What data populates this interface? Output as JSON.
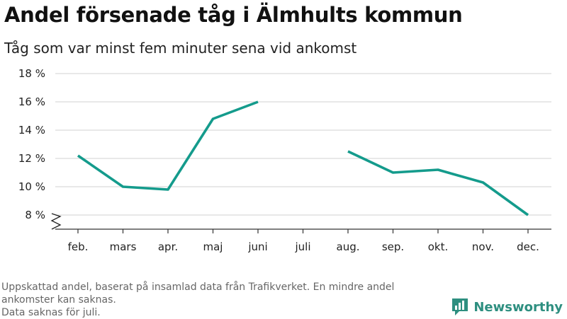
{
  "title": "Andel försenade tåg i Älmhults kommun",
  "subtitle": "Tåg som var minst fem minuter sena vid ankomst",
  "footer": {
    "line1": "Uppskattad andel, baserat på insamlad data från Trafikverket. En mindre andel ankomster kan saknas.",
    "line2": "Data saknas för juli."
  },
  "logo": {
    "text": "Newsworthy",
    "icon": "bar-chart-speech-bubble-icon"
  },
  "colors": {
    "line": "#149b8c",
    "grid": "#d9d9d9",
    "axis": "#333333",
    "logo": "#2e8f80"
  },
  "chart_data": {
    "type": "line",
    "title": "Andel försenade tåg i Älmhults kommun",
    "subtitle": "Tåg som var minst fem minuter sena vid ankomst",
    "categories": [
      "feb.",
      "mars",
      "apr.",
      "maj",
      "juni",
      "juli",
      "aug.",
      "sep.",
      "okt.",
      "nov.",
      "dec."
    ],
    "series": [
      {
        "values": [
          12.2,
          10.0,
          9.8,
          14.8,
          16.0,
          null,
          12.5,
          11.0,
          11.2,
          10.3,
          8.0
        ]
      }
    ],
    "yticks": [
      "8 %",
      "10 %",
      "12 %",
      "14 %",
      "16 %",
      "18 %"
    ],
    "ytick_values": [
      8,
      10,
      12,
      14,
      16,
      18
    ],
    "ylim": [
      7,
      18
    ],
    "y_axis_break": true,
    "grid": true,
    "xlabel": "",
    "ylabel": ""
  }
}
